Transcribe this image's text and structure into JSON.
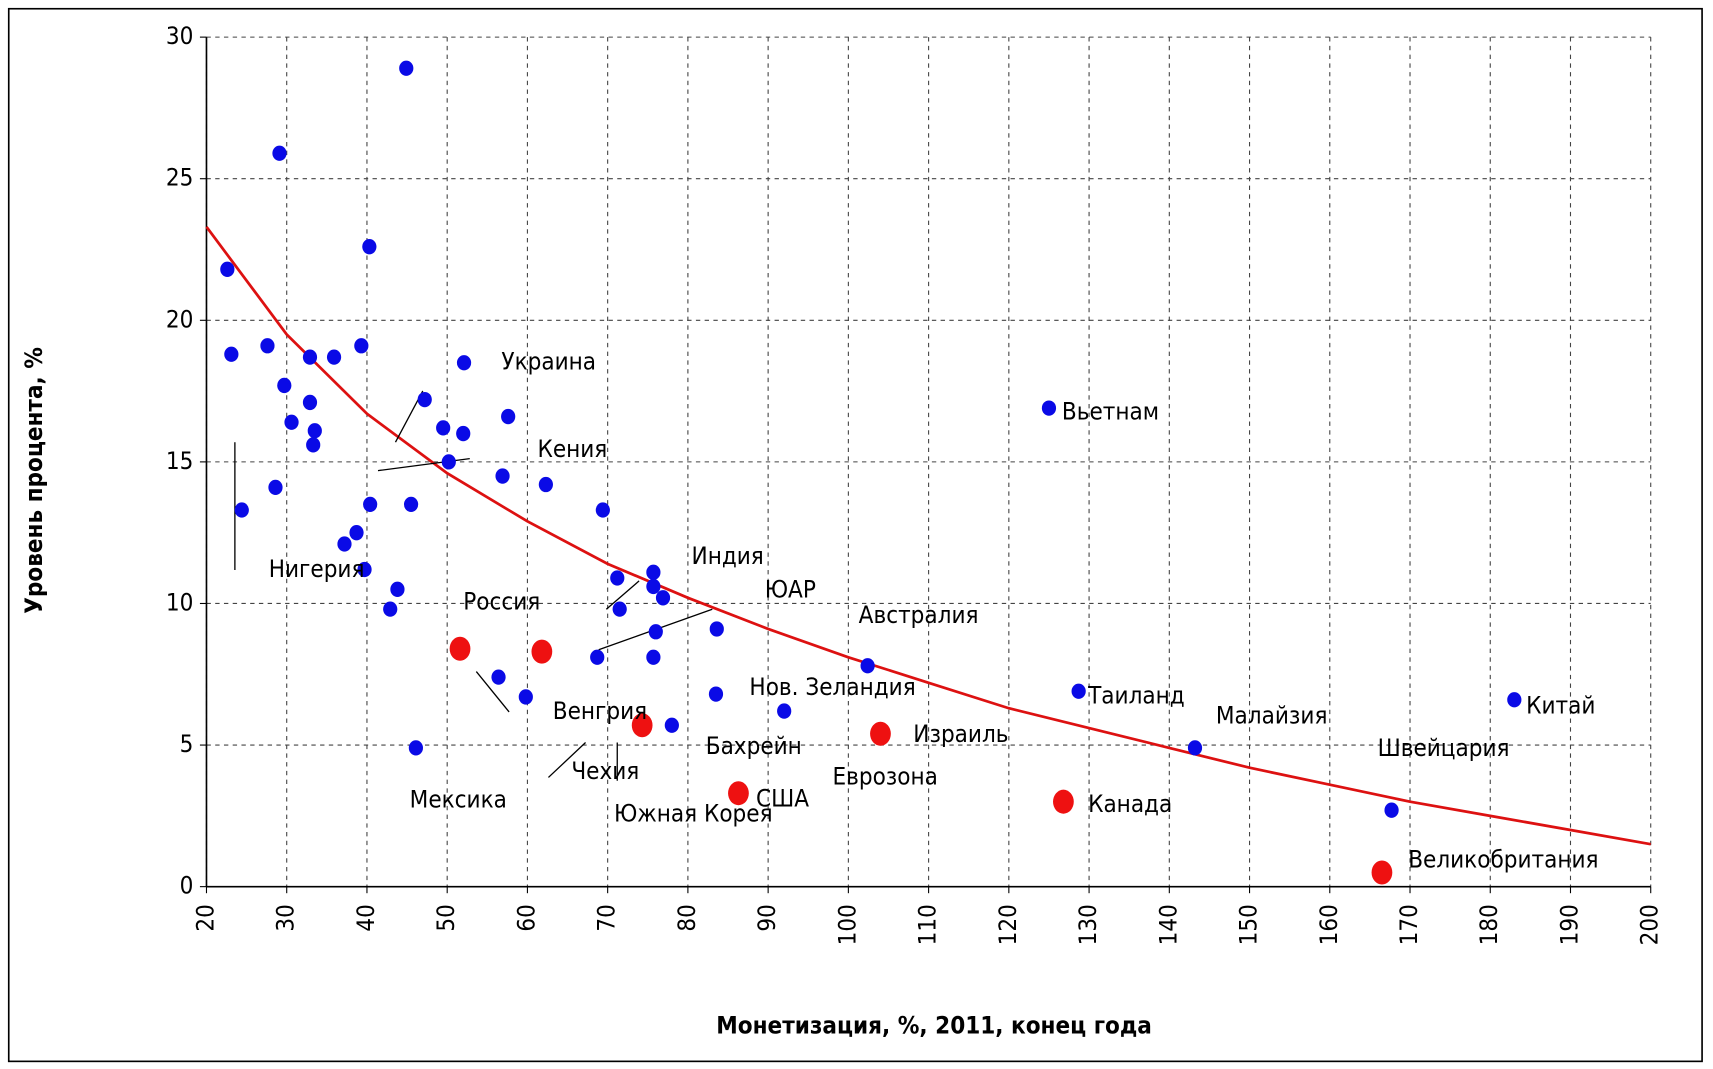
{
  "chart_data": {
    "type": "scatter",
    "xlabel": "Монетизация, %, 2011, конец года",
    "ylabel": "Уровень процента, %",
    "xlim": [
      20,
      200
    ],
    "xticks": [
      20,
      30,
      40,
      50,
      60,
      70,
      80,
      90,
      100,
      110,
      120,
      130,
      140,
      150,
      160,
      170,
      180,
      190,
      200
    ],
    "ylim": [
      0,
      30
    ],
    "yticks": [
      0,
      5,
      10,
      15,
      20,
      25,
      30
    ],
    "grid": true,
    "series": [
      {
        "color": "#0a0ae6",
        "x": [
          22.6,
          23.1,
          24.4,
          29.1,
          27.6,
          28.6,
          29.7,
          30.6,
          32.9,
          32.9,
          33.5,
          33.3,
          35.9,
          37.2,
          38.7,
          39.3,
          39.7,
          40.3,
          40.4,
          42.9,
          43.8,
          44.9,
          45.5,
          46.1,
          47.2,
          49.5,
          50.2,
          52.0,
          52.1,
          56.4,
          56.9,
          57.6,
          59.8,
          62.3,
          68.7,
          69.4,
          71.2,
          71.5,
          75.7,
          75.7,
          76.0,
          75.7,
          76.9,
          78.0,
          83.6,
          83.5,
          92.0,
          102.4,
          125.0,
          128.7,
          143.2,
          167.7,
          183.0
        ],
        "values": [
          21.8,
          18.8,
          13.3,
          25.9,
          19.1,
          14.1,
          17.7,
          16.4,
          18.7,
          17.1,
          16.1,
          15.6,
          18.7,
          12.1,
          12.5,
          19.1,
          11.2,
          22.6,
          13.5,
          9.8,
          10.5,
          28.9,
          13.5,
          4.9,
          17.2,
          16.2,
          15.0,
          16.0,
          18.5,
          7.4,
          14.5,
          16.6,
          6.7,
          14.2,
          8.1,
          13.3,
          10.9,
          9.8,
          11.1,
          10.6,
          9.0,
          8.1,
          10.2,
          5.7,
          9.1,
          6.8,
          6.2,
          7.8,
          16.9,
          6.9,
          4.9,
          2.7,
          6.6
        ]
      },
      {
        "color": "#ee1111",
        "x": [
          51.6,
          61.8,
          74.3,
          86.3,
          104.0,
          126.8,
          166.5
        ],
        "values": [
          8.4,
          8.3,
          5.7,
          3.3,
          5.4,
          3.0,
          0.5
        ]
      }
    ],
    "trendline": {
      "color": "#dd1111",
      "x": [
        20,
        30,
        40,
        50,
        60,
        70,
        80,
        90,
        100,
        110,
        120,
        130,
        140,
        150,
        160,
        170,
        180,
        190,
        200
      ],
      "values": [
        23.3,
        19.5,
        16.7,
        14.6,
        12.9,
        11.4,
        10.2,
        9.1,
        8.1,
        7.2,
        6.3,
        5.6,
        4.9,
        4.2,
        3.6,
        3.0,
        2.5,
        2.0,
        1.5
      ]
    },
    "annotations": [
      {
        "text": "Украина",
        "color": "#000000"
      },
      {
        "text": "Кения",
        "color": "#000000"
      },
      {
        "text": "Вьетнам",
        "color": "#000000"
      },
      {
        "text": "Нигерия",
        "color": "#000000"
      },
      {
        "text": "Индия",
        "color": "#000000"
      },
      {
        "text": "ЮАР",
        "color": "#000000"
      },
      {
        "text": "Россия",
        "color": "#e01010"
      },
      {
        "text": "Австралия",
        "color": "#000000"
      },
      {
        "text": "Нов. Зеландия",
        "color": "#000000"
      },
      {
        "text": "Таиланд",
        "color": "#000000"
      },
      {
        "text": "Малайзия",
        "color": "#000000"
      },
      {
        "text": "Китай",
        "color": "#000000"
      },
      {
        "text": "Венгрия",
        "color": "#000000"
      },
      {
        "text": "Бахрейн",
        "color": "#000000"
      },
      {
        "text": "Израиль",
        "color": "#000000"
      },
      {
        "text": "Швейцария",
        "color": "#000000"
      },
      {
        "text": "Чехия",
        "color": "#000000"
      },
      {
        "text": "Еврозона",
        "color": "#000000"
      },
      {
        "text": "Мексика",
        "color": "#000000"
      },
      {
        "text": "США",
        "color": "#000000"
      },
      {
        "text": "Канада",
        "color": "#000000"
      },
      {
        "text": "Южная Корея",
        "color": "#000000"
      },
      {
        "text": "Великобритания",
        "color": "#000000"
      }
    ]
  }
}
